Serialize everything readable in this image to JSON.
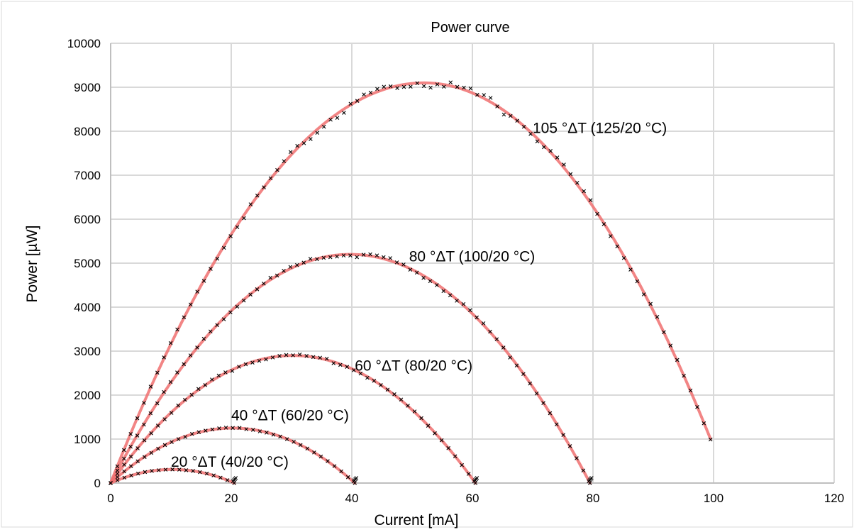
{
  "chart_data": {
    "type": "scatter",
    "title": "Power curve",
    "xlabel": "Current [mA]",
    "ylabel": "Power [µW]",
    "xlim": [
      0,
      120
    ],
    "ylim": [
      0,
      10000
    ],
    "x_ticks": [
      "0",
      "20",
      "40",
      "60",
      "80",
      "100",
      "120"
    ],
    "y_ticks": [
      "0",
      "1000",
      "2000",
      "3000",
      "4000",
      "5000",
      "6000",
      "7000",
      "8000",
      "9000",
      "10000"
    ],
    "grid": true,
    "legend": "none",
    "colors": {
      "fit": "#f07070",
      "marker": "#000000",
      "grid": "#d9d9d9",
      "frame": "#bfbfbf"
    },
    "series": [
      {
        "label": "20 °ΔT (40/20 °C)",
        "x_max": 20.5,
        "p_max": 310,
        "x_peak": 10.25,
        "label_pos": [
          10,
          370
        ]
      },
      {
        "label": "40 °ΔT (60/20 °C)",
        "x_max": 40.5,
        "p_max": 1250,
        "x_peak": 20.25,
        "label_pos": [
          20,
          1430
        ]
      },
      {
        "label": "60 °ΔT (80/20 °C)",
        "x_max": 60.5,
        "p_max": 2900,
        "x_peak": 30.25,
        "label_pos": [
          40.5,
          2560
        ]
      },
      {
        "label": "80 °ΔT (100/20 °C)",
        "x_max": 79.5,
        "p_max": 5200,
        "x_peak": 39.75,
        "label_pos": [
          49.5,
          5040
        ]
      },
      {
        "label": "105 °ΔT (125/20 °C)",
        "x_max": 99.5,
        "p_max": 9100,
        "x_peak": 52,
        "label_pos": [
          70,
          7960
        ],
        "end_point": [
          99.5,
          1000
        ]
      }
    ]
  }
}
